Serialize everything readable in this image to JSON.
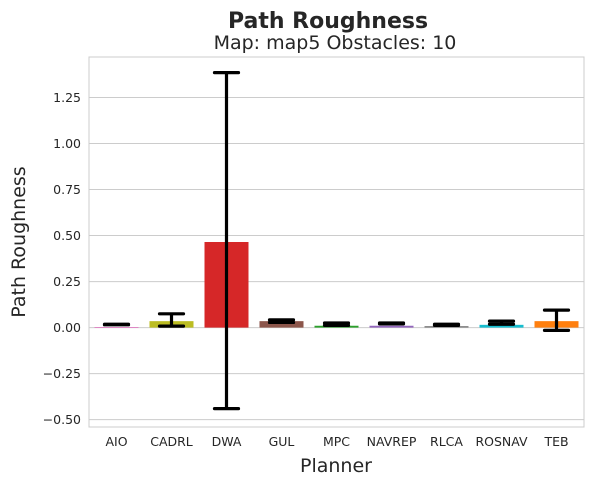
{
  "chart_data": {
    "type": "bar",
    "suptitle": "Path Roughness",
    "title": "Map: map5 Obstacles: 10",
    "xlabel": "Planner",
    "ylabel": "Path Roughness",
    "categories": [
      "AIO",
      "CADRL",
      "DWA",
      "GUL",
      "MPC",
      "NAVREP",
      "RLCA",
      "ROSNAV",
      "TEB"
    ],
    "values": [
      0.003,
      0.035,
      0.465,
      0.035,
      0.01,
      0.01,
      0.008,
      0.015,
      0.035
    ],
    "error_low": [
      0.015,
      0.008,
      -0.44,
      0.028,
      0.012,
      0.02,
      0.012,
      0.018,
      -0.015
    ],
    "error_high": [
      0.018,
      0.075,
      1.385,
      0.042,
      0.025,
      0.025,
      0.018,
      0.035,
      0.095
    ],
    "colors": [
      "#e377c2",
      "#bcbd22",
      "#d62728",
      "#8c564b",
      "#2ca02c",
      "#9467bd",
      "#7f7f7f",
      "#17becf",
      "#ff7f0e"
    ],
    "ylim": [
      -0.54,
      1.47
    ],
    "yticks": [
      -0.5,
      -0.25,
      0.0,
      0.25,
      0.5,
      0.75,
      1.0,
      1.25
    ],
    "ytick_labels": [
      "−0.50",
      "−0.25",
      "0.00",
      "0.25",
      "0.50",
      "0.75",
      "1.00",
      "1.25"
    ],
    "grid": true
  }
}
